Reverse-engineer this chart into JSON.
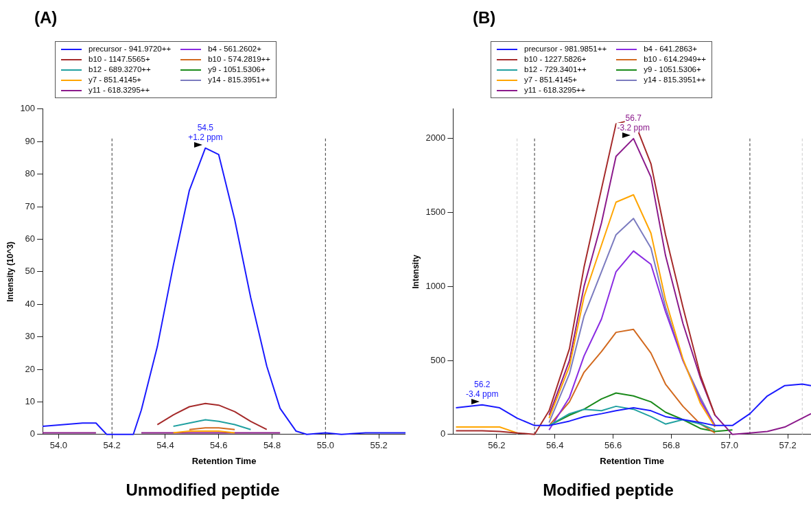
{
  "chart_data": [
    {
      "type": "line",
      "title": "(A)",
      "subtitle": "Unmodified peptide",
      "xlabel": "Retention Time",
      "ylabel": "Intensity (10^3)",
      "legend": "top",
      "marker": "none",
      "line_style": "solid",
      "x": [
        53.94,
        54.09,
        54.14,
        54.18,
        54.28,
        54.31,
        54.37,
        54.43,
        54.49,
        54.55,
        54.6,
        54.66,
        54.72,
        54.78,
        54.83,
        54.89,
        54.93,
        55.0,
        55.06,
        55.15,
        55.3
      ],
      "series": [
        {
          "name": "precursor - 941.9720++",
          "color": "#1a1aff",
          "values": [
            2.5,
            3.5,
            3.5,
            0,
            0,
            7.5,
            27,
            52,
            75,
            88,
            86,
            66,
            42,
            21,
            8,
            1,
            0,
            0.5,
            0,
            0.5,
            0.5
          ]
        },
        {
          "name": "b10 - 1147.5565+",
          "color": "#a52a2a",
          "values": [
            null,
            null,
            null,
            null,
            null,
            null,
            3,
            6,
            8.5,
            9.5,
            9,
            7,
            4,
            1.5,
            null,
            null,
            null,
            null,
            null,
            null,
            null
          ]
        },
        {
          "name": "b12 - 689.3270++",
          "color": "#20a0a0",
          "values": [
            null,
            null,
            null,
            null,
            null,
            null,
            null,
            2.5,
            3.5,
            4.5,
            4,
            3,
            1.5,
            null,
            null,
            null,
            null,
            null,
            null,
            null,
            null
          ]
        },
        {
          "name": "y7 - 851.4145+",
          "color": "#ffa500",
          "values": [
            null,
            null,
            null,
            null,
            null,
            null,
            null,
            0.5,
            1,
            1,
            1,
            0.5,
            null,
            null,
            null,
            null,
            null,
            null,
            null,
            null,
            null
          ]
        },
        {
          "name": "y11 - 618.3295++",
          "color": "#8b1a8b",
          "values": [
            0.5,
            0.5,
            0.5,
            null,
            null,
            0.5,
            0.5,
            0.5,
            0.5,
            0.5,
            0.5,
            0.5,
            0.5,
            0.5,
            0.5,
            null,
            null,
            null,
            null,
            null,
            null
          ]
        },
        {
          "name": "b4 - 561.2602+",
          "color": "#8a2be2",
          "values": [
            null,
            null,
            null,
            null,
            null,
            null,
            null,
            null,
            null,
            null,
            null,
            null,
            null,
            null,
            null,
            null,
            null,
            null,
            null,
            null,
            null
          ]
        },
        {
          "name": "b10 - 574.2819++",
          "color": "#d2691e",
          "values": [
            null,
            null,
            null,
            null,
            null,
            null,
            null,
            null,
            1.5,
            2,
            2,
            1.5,
            null,
            null,
            null,
            null,
            null,
            null,
            null,
            null,
            null
          ]
        },
        {
          "name": "y9 - 1051.5306+",
          "color": "#1a8a1a",
          "values": [
            null,
            null,
            null,
            null,
            null,
            null,
            null,
            null,
            null,
            null,
            null,
            null,
            null,
            null,
            null,
            null,
            null,
            null,
            null,
            null,
            null
          ]
        },
        {
          "name": "y14 - 815.3951++",
          "color": "#7b7bbf",
          "values": [
            null,
            null,
            null,
            null,
            null,
            null,
            null,
            null,
            null,
            null,
            null,
            null,
            null,
            null,
            null,
            null,
            null,
            null,
            null,
            null,
            null
          ]
        }
      ],
      "xlim": [
        53.94,
        55.3
      ],
      "xticks": [
        {
          "value": 54,
          "label": "54.0"
        },
        {
          "value": 54.2,
          "label": "54.2"
        },
        {
          "value": 54.4,
          "label": "54.4"
        },
        {
          "value": 54.6,
          "label": "54.6"
        },
        {
          "value": 54.8,
          "label": "54.8"
        },
        {
          "value": 55,
          "label": "55.0"
        },
        {
          "value": 55.2,
          "label": "55.2"
        }
      ],
      "ylim": [
        0,
        100
      ],
      "yticks": [
        0,
        10,
        20,
        30,
        40,
        50,
        60,
        70,
        80,
        90,
        100
      ],
      "ref_lines": [
        {
          "axis": "x",
          "value": 54.2,
          "color": "#333333",
          "line_style": "dashed"
        },
        {
          "axis": "x",
          "value": 55.0,
          "color": "#333333",
          "line_style": "dashed"
        }
      ],
      "annotations": [
        {
          "text": "54.5\n+1.2 ppm",
          "x": 54.55,
          "y": 88
        }
      ]
    },
    {
      "type": "line",
      "title": "(B)",
      "subtitle": "Modified peptide",
      "xlabel": "Retention Time",
      "ylabel": "Intensity",
      "legend": "top",
      "marker": "none",
      "line_style": "solid",
      "x": [
        56.06,
        56.15,
        56.21,
        56.27,
        56.33,
        56.38,
        56.45,
        56.5,
        56.56,
        56.61,
        56.67,
        56.73,
        56.78,
        56.84,
        56.9,
        56.95,
        57.01,
        57.07,
        57.13,
        57.19,
        57.25,
        57.28
      ],
      "series": [
        {
          "name": "precursor - 981.9851++",
          "color": "#1a1aff",
          "values": [
            180,
            200,
            180,
            110,
            60,
            60,
            90,
            120,
            140,
            160,
            180,
            160,
            120,
            100,
            80,
            60,
            60,
            140,
            260,
            330,
            340,
            330
          ]
        },
        {
          "name": "b10 - 1227.5826+",
          "color": "#a52a2a",
          "values": [
            25,
            25,
            20,
            10,
            0,
            160,
            580,
            1130,
            1660,
            2100,
            2130,
            1830,
            1350,
            860,
            400,
            130,
            null,
            null,
            null,
            null,
            null,
            null
          ]
        },
        {
          "name": "b12 - 729.3401++",
          "color": "#20a0a0",
          "values": [
            null,
            null,
            null,
            null,
            null,
            60,
            140,
            170,
            160,
            190,
            170,
            120,
            70,
            100,
            70,
            30,
            null,
            null,
            null,
            null,
            null,
            null
          ]
        },
        {
          "name": "y7 - 851.4145+",
          "color": "#ffa500",
          "values": [
            50,
            50,
            50,
            10,
            null,
            110,
            460,
            930,
            1280,
            1570,
            1620,
            1360,
            910,
            510,
            210,
            50,
            null,
            null,
            null,
            null,
            null,
            null
          ]
        },
        {
          "name": "y11 - 618.3295++",
          "color": "#8b1a8b",
          "values": [
            null,
            null,
            null,
            null,
            null,
            130,
            500,
            1000,
            1430,
            1880,
            2000,
            1740,
            1210,
            750,
            380,
            130,
            0,
            10,
            20,
            50,
            110,
            140
          ]
        },
        {
          "name": "b4 - 641.2863+",
          "color": "#8a2be2",
          "values": [
            null,
            null,
            null,
            null,
            null,
            30,
            250,
            530,
            780,
            1100,
            1240,
            1150,
            830,
            500,
            230,
            60,
            null,
            null,
            null,
            null,
            null,
            null
          ]
        },
        {
          "name": "b10 - 614.2949++",
          "color": "#d2691e",
          "values": [
            null,
            null,
            null,
            null,
            null,
            60,
            220,
            420,
            560,
            690,
            710,
            550,
            340,
            190,
            70,
            10,
            null,
            null,
            null,
            null,
            null,
            null
          ]
        },
        {
          "name": "y9 - 1051.5306+",
          "color": "#1a8a1a",
          "values": [
            null,
            null,
            null,
            null,
            null,
            60,
            130,
            170,
            240,
            280,
            260,
            220,
            150,
            100,
            40,
            20,
            30,
            null,
            null,
            null,
            null,
            null
          ]
        },
        {
          "name": "y14 - 815.3951++",
          "color": "#7b7bbf",
          "values": [
            null,
            null,
            null,
            null,
            null,
            80,
            410,
            800,
            1100,
            1350,
            1460,
            1260,
            860,
            500,
            250,
            60,
            null,
            null,
            null,
            null,
            null,
            null
          ]
        }
      ],
      "xlim": [
        56.05,
        57.28
      ],
      "xticks": [
        {
          "value": 56.2,
          "label": "56.2"
        },
        {
          "value": 56.4,
          "label": "56.4"
        },
        {
          "value": 56.6,
          "label": "56.6"
        },
        {
          "value": 56.8,
          "label": "56.8"
        },
        {
          "value": 57,
          "label": "57.0"
        },
        {
          "value": 57.2,
          "label": "57.2"
        }
      ],
      "ylim": [
        0,
        2200
      ],
      "yticks": [
        0,
        500,
        1000,
        1500,
        2000
      ],
      "ref_lines": [
        {
          "axis": "x",
          "value": 56.33,
          "color": "#333333",
          "line_style": "dashed"
        },
        {
          "axis": "x",
          "value": 57.07,
          "color": "#333333",
          "line_style": "dashed"
        },
        {
          "axis": "x",
          "value": 56.27,
          "color": "#cccccc",
          "line_style": "dashed"
        },
        {
          "axis": "x",
          "value": 57.25,
          "color": "#cccccc",
          "line_style": "dashed"
        }
      ],
      "annotations": [
        {
          "text": "56.7\n-3.2 ppm",
          "x": 56.67,
          "y": 2000
        },
        {
          "text": "56.2\n-3.4 ppm",
          "x": 56.15,
          "y": 200
        }
      ]
    }
  ]
}
